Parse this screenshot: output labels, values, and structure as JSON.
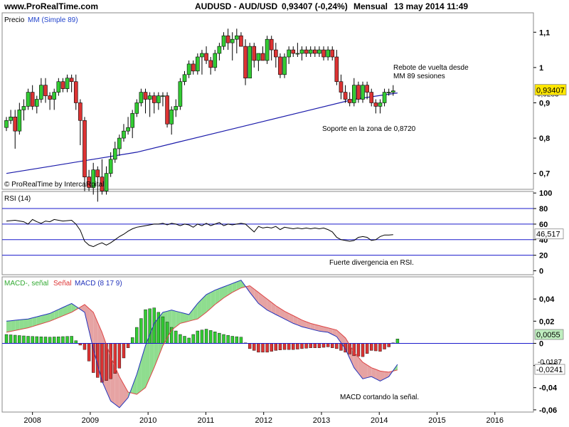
{
  "header": {
    "site": "www.ProRealTime.com",
    "instrument": "AUDUSD - AUD/USD",
    "quote": "0,93407 (-0,24%)",
    "period": "Mensual",
    "datetime": "13 may 2014 11:49"
  },
  "copyright": "© ProRealTime by IntercaRpital",
  "colors": {
    "up": "#33cc33",
    "down": "#dd3333",
    "sma": "#1a1aaa",
    "rsi": "#000000",
    "macd": "#2233bb",
    "signal": "#dd4444",
    "hline": "#1a1acc",
    "price_badge": "#ffe600"
  },
  "chart_data": [
    {
      "type": "candlestick",
      "panel": "price",
      "title": "Precio",
      "indicator_label": "MM (Simple 89)",
      "y_ticks": [
        "1,1",
        "1",
        "0,9",
        "0,8",
        "0,7"
      ],
      "ylim": [
        0.655,
        1.155
      ],
      "last_price_label": "0,93407",
      "sma_label": "0,9283",
      "x_ticks": [
        "2008",
        "2009",
        "2010",
        "2011",
        "2012",
        "2013",
        "2014",
        "2015",
        "2016"
      ],
      "candles": [
        [
          0.83,
          0.86,
          0.82,
          0.85
        ],
        [
          0.85,
          0.88,
          0.84,
          0.86
        ],
        [
          0.86,
          0.88,
          0.77,
          0.82
        ],
        [
          0.82,
          0.9,
          0.81,
          0.88
        ],
        [
          0.88,
          0.91,
          0.85,
          0.89
        ],
        [
          0.89,
          0.94,
          0.88,
          0.93
        ],
        [
          0.93,
          0.95,
          0.88,
          0.89
        ],
        [
          0.89,
          0.92,
          0.87,
          0.91
        ],
        [
          0.91,
          0.97,
          0.9,
          0.95
        ],
        [
          0.95,
          0.97,
          0.9,
          0.92
        ],
        [
          0.92,
          0.93,
          0.88,
          0.91
        ],
        [
          0.91,
          0.94,
          0.88,
          0.93
        ],
        [
          0.93,
          0.97,
          0.92,
          0.96
        ],
        [
          0.96,
          0.97,
          0.93,
          0.94
        ],
        [
          0.94,
          0.98,
          0.93,
          0.97
        ],
        [
          0.97,
          0.98,
          0.93,
          0.96
        ],
        [
          0.96,
          0.98,
          0.88,
          0.9
        ],
        [
          0.9,
          0.91,
          0.78,
          0.85
        ],
        [
          0.85,
          0.86,
          0.65,
          0.69
        ],
        [
          0.69,
          0.71,
          0.65,
          0.66
        ],
        [
          0.66,
          0.73,
          0.64,
          0.71
        ],
        [
          0.71,
          0.72,
          0.62,
          0.69
        ],
        [
          0.69,
          0.74,
          0.64,
          0.65
        ],
        [
          0.65,
          0.72,
          0.64,
          0.7
        ],
        [
          0.7,
          0.76,
          0.69,
          0.74
        ],
        [
          0.74,
          0.79,
          0.73,
          0.77
        ],
        [
          0.77,
          0.81,
          0.75,
          0.8
        ],
        [
          0.8,
          0.84,
          0.79,
          0.82
        ],
        [
          0.82,
          0.86,
          0.81,
          0.83
        ],
        [
          0.83,
          0.88,
          0.8,
          0.87
        ],
        [
          0.87,
          0.91,
          0.86,
          0.9
        ],
        [
          0.9,
          0.94,
          0.89,
          0.93
        ],
        [
          0.93,
          0.94,
          0.87,
          0.91
        ],
        [
          0.91,
          0.93,
          0.86,
          0.92
        ],
        [
          0.92,
          0.93,
          0.87,
          0.9
        ],
        [
          0.9,
          0.93,
          0.88,
          0.92
        ],
        [
          0.92,
          0.93,
          0.89,
          0.92
        ],
        [
          0.92,
          0.93,
          0.83,
          0.84
        ],
        [
          0.84,
          0.89,
          0.81,
          0.88
        ],
        [
          0.88,
          0.91,
          0.86,
          0.89
        ],
        [
          0.89,
          0.97,
          0.88,
          0.96
        ],
        [
          0.96,
          0.99,
          0.95,
          0.98
        ],
        [
          0.98,
          1.02,
          0.97,
          1.01
        ],
        [
          1.01,
          1.02,
          0.98,
          0.99
        ],
        [
          0.99,
          1.04,
          0.98,
          1.03
        ],
        [
          1.03,
          1.05,
          0.98,
          1.04
        ],
        [
          1.04,
          1.06,
          1.01,
          1.02
        ],
        [
          1.02,
          1.03,
          0.98,
          1.0
        ],
        [
          1.0,
          1.05,
          0.99,
          1.04
        ],
        [
          1.04,
          1.07,
          1.02,
          1.06
        ],
        [
          1.06,
          1.1,
          1.05,
          1.09
        ],
        [
          1.09,
          1.11,
          1.05,
          1.07
        ],
        [
          1.07,
          1.1,
          1.02,
          1.08
        ],
        [
          1.08,
          1.11,
          1.04,
          1.09
        ],
        [
          1.09,
          1.1,
          1.06,
          1.06
        ],
        [
          1.06,
          1.08,
          0.95,
          0.97
        ],
        [
          0.97,
          1.07,
          0.97,
          1.06
        ],
        [
          1.06,
          1.07,
          1.0,
          1.02
        ],
        [
          1.02,
          1.04,
          0.99,
          1.04
        ],
        [
          1.04,
          1.06,
          1.02,
          1.02
        ],
        [
          1.02,
          1.09,
          1.01,
          1.08
        ],
        [
          1.08,
          1.09,
          1.02,
          1.05
        ],
        [
          1.05,
          1.07,
          1.0,
          1.03
        ],
        [
          1.03,
          1.04,
          0.97,
          0.98
        ],
        [
          0.98,
          1.04,
          0.97,
          1.03
        ],
        [
          1.03,
          1.06,
          1.01,
          1.05
        ],
        [
          1.05,
          1.06,
          1.03,
          1.04
        ],
        [
          1.04,
          1.07,
          1.03,
          1.04
        ],
        [
          1.04,
          1.06,
          1.02,
          1.05
        ],
        [
          1.05,
          1.06,
          1.03,
          1.04
        ],
        [
          1.04,
          1.06,
          1.03,
          1.05
        ],
        [
          1.05,
          1.06,
          1.03,
          1.04
        ],
        [
          1.04,
          1.06,
          1.03,
          1.05
        ],
        [
          1.05,
          1.06,
          1.02,
          1.03
        ],
        [
          1.03,
          1.06,
          1.02,
          1.05
        ],
        [
          1.05,
          1.06,
          1.02,
          1.03
        ],
        [
          1.03,
          1.05,
          0.95,
          0.96
        ],
        [
          0.96,
          0.98,
          0.91,
          0.93
        ],
        [
          0.93,
          0.95,
          0.9,
          0.91
        ],
        [
          0.91,
          0.93,
          0.89,
          0.9
        ],
        [
          0.9,
          0.97,
          0.89,
          0.95
        ],
        [
          0.95,
          0.96,
          0.9,
          0.91
        ],
        [
          0.91,
          0.96,
          0.9,
          0.95
        ],
        [
          0.95,
          0.96,
          0.91,
          0.93
        ],
        [
          0.93,
          0.94,
          0.89,
          0.9
        ],
        [
          0.9,
          0.91,
          0.87,
          0.89
        ],
        [
          0.89,
          0.91,
          0.87,
          0.9
        ],
        [
          0.9,
          0.94,
          0.89,
          0.93
        ],
        [
          0.93,
          0.94,
          0.92,
          0.93
        ],
        [
          0.93,
          0.95,
          0.92,
          0.934
        ]
      ],
      "sma": [
        [
          0,
          0.7
        ],
        [
          10,
          0.72
        ],
        [
          20,
          0.74
        ],
        [
          30,
          0.76
        ],
        [
          40,
          0.79
        ],
        [
          50,
          0.82
        ],
        [
          60,
          0.85
        ],
        [
          70,
          0.88
        ],
        [
          80,
          0.91
        ],
        [
          90,
          0.928
        ]
      ],
      "annotations": [
        "Rebote de vuelta desde",
        "MM 89 sesiones",
        "Soporte en la zona de 0,8720"
      ]
    },
    {
      "type": "line",
      "panel": "rsi",
      "title": "RSI (14)",
      "ylim": [
        -5,
        102
      ],
      "y_ticks": [
        "100",
        "80",
        "60",
        "40",
        "20",
        "0"
      ],
      "hlines": [
        80,
        60,
        40,
        20
      ],
      "last_value_label": "46,517",
      "values": [
        [
          0,
          64
        ],
        [
          2,
          65
        ],
        [
          4,
          63
        ],
        [
          5,
          60
        ],
        [
          6,
          66
        ],
        [
          7,
          63
        ],
        [
          8,
          61
        ],
        [
          9,
          64
        ],
        [
          10,
          63
        ],
        [
          11,
          66
        ],
        [
          13,
          64
        ],
        [
          15,
          65
        ],
        [
          16,
          60
        ],
        [
          17,
          52
        ],
        [
          18,
          38
        ],
        [
          19,
          33
        ],
        [
          20,
          31
        ],
        [
          21,
          34
        ],
        [
          22,
          36
        ],
        [
          23,
          33
        ],
        [
          24,
          36
        ],
        [
          25,
          40
        ],
        [
          26,
          44
        ],
        [
          27,
          47
        ],
        [
          28,
          51
        ],
        [
          29,
          54
        ],
        [
          30,
          56
        ],
        [
          31,
          57
        ],
        [
          32,
          58
        ],
        [
          33,
          59
        ],
        [
          34,
          60
        ],
        [
          35,
          60
        ],
        [
          36,
          61
        ],
        [
          37,
          59
        ],
        [
          38,
          61
        ],
        [
          39,
          60
        ],
        [
          40,
          58
        ],
        [
          41,
          60
        ],
        [
          42,
          59
        ],
        [
          43,
          56
        ],
        [
          44,
          60
        ],
        [
          45,
          58
        ],
        [
          46,
          61
        ],
        [
          47,
          58
        ],
        [
          48,
          60
        ],
        [
          49,
          62
        ],
        [
          50,
          58
        ],
        [
          51,
          60
        ],
        [
          52,
          59
        ],
        [
          53,
          60
        ],
        [
          54,
          61
        ],
        [
          55,
          60
        ],
        [
          56,
          55
        ],
        [
          57,
          50
        ],
        [
          58,
          57
        ],
        [
          59,
          55
        ],
        [
          60,
          56
        ],
        [
          61,
          55
        ],
        [
          62,
          57
        ],
        [
          63,
          53
        ],
        [
          64,
          56
        ],
        [
          65,
          55
        ],
        [
          66,
          54
        ],
        [
          67,
          55
        ],
        [
          68,
          54
        ],
        [
          69,
          55
        ],
        [
          70,
          54
        ],
        [
          71,
          55
        ],
        [
          72,
          54
        ],
        [
          73,
          55
        ],
        [
          74,
          53
        ],
        [
          75,
          50
        ],
        [
          76,
          43
        ],
        [
          77,
          40
        ],
        [
          78,
          39
        ],
        [
          79,
          38
        ],
        [
          80,
          39
        ],
        [
          81,
          43
        ],
        [
          82,
          44
        ],
        [
          83,
          43
        ],
        [
          84,
          39
        ],
        [
          85,
          40
        ],
        [
          86,
          44
        ],
        [
          87,
          46
        ],
        [
          88,
          46
        ],
        [
          89,
          46.5
        ]
      ],
      "annotations": [
        "Fuerte divergencia en RSI."
      ]
    },
    {
      "type": "line",
      "panel": "macd",
      "title_parts": [
        "MACD-, señal",
        "Señal",
        "MACD (8 17 9)"
      ],
      "ylim": [
        -0.062,
        0.06
      ],
      "y_ticks": [
        "0,04",
        "0,02",
        "0",
        "-0,02",
        "-0,04",
        "-0,06"
      ],
      "zero_label": "0,0055",
      "macd_label": "-0,0187",
      "signal_label": "-0,0241",
      "macd": [
        [
          0,
          0.02
        ],
        [
          5,
          0.022
        ],
        [
          10,
          0.027
        ],
        [
          15,
          0.036
        ],
        [
          18,
          0.028
        ],
        [
          20,
          -0.005
        ],
        [
          22,
          -0.034
        ],
        [
          24,
          -0.052
        ],
        [
          26,
          -0.058
        ],
        [
          28,
          -0.049
        ],
        [
          30,
          -0.028
        ],
        [
          32,
          -0.002
        ],
        [
          34,
          0.018
        ],
        [
          36,
          0.028
        ],
        [
          38,
          0.03
        ],
        [
          40,
          0.028
        ],
        [
          42,
          0.026
        ],
        [
          44,
          0.036
        ],
        [
          46,
          0.044
        ],
        [
          48,
          0.048
        ],
        [
          50,
          0.051
        ],
        [
          52,
          0.054
        ],
        [
          54,
          0.057
        ],
        [
          56,
          0.046
        ],
        [
          58,
          0.036
        ],
        [
          60,
          0.03
        ],
        [
          62,
          0.026
        ],
        [
          64,
          0.022
        ],
        [
          66,
          0.018
        ],
        [
          68,
          0.015
        ],
        [
          70,
          0.013
        ],
        [
          72,
          0.011
        ],
        [
          74,
          0.01
        ],
        [
          76,
          0.006
        ],
        [
          78,
          -0.005
        ],
        [
          80,
          -0.022
        ],
        [
          82,
          -0.032
        ],
        [
          84,
          -0.03
        ],
        [
          86,
          -0.034
        ],
        [
          88,
          -0.03
        ],
        [
          90,
          -0.019
        ]
      ],
      "signal": [
        [
          0,
          0.01
        ],
        [
          5,
          0.014
        ],
        [
          10,
          0.02
        ],
        [
          15,
          0.028
        ],
        [
          18,
          0.035
        ],
        [
          20,
          0.028
        ],
        [
          22,
          0.01
        ],
        [
          24,
          -0.012
        ],
        [
          26,
          -0.03
        ],
        [
          28,
          -0.044
        ],
        [
          30,
          -0.046
        ],
        [
          32,
          -0.04
        ],
        [
          34,
          -0.022
        ],
        [
          36,
          -0.002
        ],
        [
          38,
          0.012
        ],
        [
          40,
          0.018
        ],
        [
          42,
          0.02
        ],
        [
          44,
          0.022
        ],
        [
          46,
          0.028
        ],
        [
          48,
          0.035
        ],
        [
          50,
          0.041
        ],
        [
          52,
          0.046
        ],
        [
          54,
          0.05
        ],
        [
          56,
          0.052
        ],
        [
          58,
          0.046
        ],
        [
          60,
          0.04
        ],
        [
          62,
          0.034
        ],
        [
          64,
          0.029
        ],
        [
          66,
          0.025
        ],
        [
          68,
          0.021
        ],
        [
          70,
          0.018
        ],
        [
          72,
          0.016
        ],
        [
          74,
          0.014
        ],
        [
          76,
          0.012
        ],
        [
          78,
          0.005
        ],
        [
          80,
          -0.008
        ],
        [
          82,
          -0.017
        ],
        [
          84,
          -0.022
        ],
        [
          86,
          -0.025
        ],
        [
          88,
          -0.026
        ],
        [
          90,
          -0.024
        ]
      ],
      "annotations": [
        "MACD cortando la señal."
      ]
    }
  ]
}
